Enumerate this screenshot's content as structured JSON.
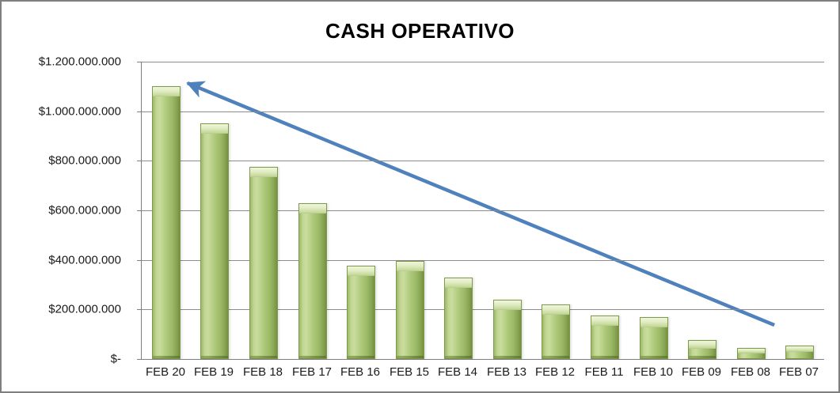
{
  "window": {
    "background_color": "#ffffff",
    "frame_border_color": "#7f7f7f"
  },
  "chart_data": {
    "type": "bar",
    "title": "CASH OPERATIVO",
    "categories": [
      "FEB 20",
      "FEB 19",
      "FEB 18",
      "FEB 17",
      "FEB 16",
      "FEB 15",
      "FEB 14",
      "FEB 13",
      "FEB 12",
      "FEB 11",
      "FEB 10",
      "FEB 09",
      "FEB 08",
      "FEB 07"
    ],
    "values": [
      1100000000,
      950000000,
      775000000,
      630000000,
      375000000,
      395000000,
      330000000,
      240000000,
      220000000,
      175000000,
      170000000,
      75000000,
      45000000,
      55000000
    ],
    "xlabel": "",
    "ylabel": "",
    "ylim": [
      0,
      1200000000
    ],
    "y_tick_labels": [
      "$1.200.000.000",
      "$1.000.000.000",
      "$800.000.000",
      "$600.000.000",
      "$400.000.000",
      "$200.000.000",
      "$-"
    ],
    "grid": true,
    "legend": "none",
    "bar_color": "#9bbb59",
    "bar_highlight_color": "#e2edc4",
    "gridline_color": "#8c8c8c",
    "axis_color": "#7f7f7f",
    "annotation": {
      "type": "arrow",
      "color": "#4f81bd",
      "direction": "from lower-right to upper-left",
      "from_frac": [
        0.927,
        0.886
      ],
      "to_frac": [
        0.067,
        0.072
      ]
    }
  }
}
